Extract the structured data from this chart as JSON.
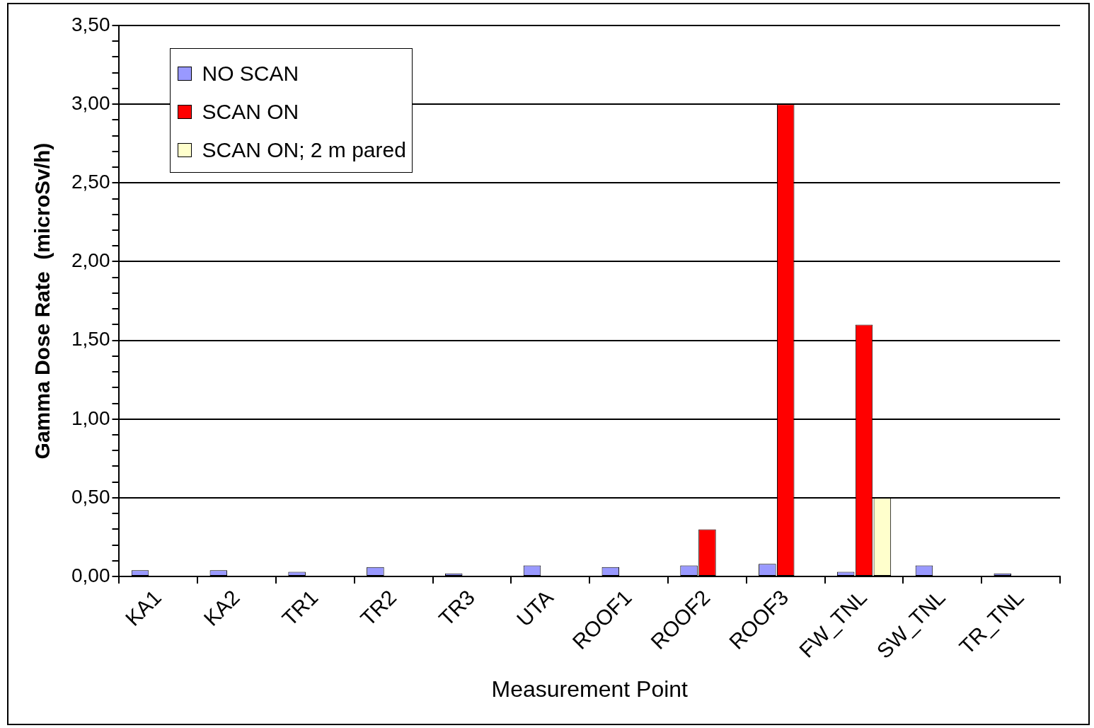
{
  "chart_data": {
    "type": "bar",
    "xlabel": "Measurement Point",
    "ylabel": "Gamma Dose Rate  (microSv/h)",
    "categories": [
      "KA1",
      "KA2",
      "TR1",
      "TR2",
      "TR3",
      "UTA",
      "ROOF1",
      "ROOF2",
      "ROOF3",
      "FW_TNL",
      "SW_TNL",
      "TR_TNL"
    ],
    "series": [
      {
        "name": "NO SCAN",
        "color": "#9999ff",
        "values": [
          0.04,
          0.04,
          0.03,
          0.06,
          0.02,
          0.07,
          0.06,
          0.07,
          0.08,
          0.03,
          0.07,
          0.02
        ]
      },
      {
        "name": "SCAN ON",
        "color": "#ff0000",
        "values": [
          null,
          null,
          null,
          null,
          null,
          null,
          null,
          0.3,
          3.0,
          1.6,
          null,
          null
        ]
      },
      {
        "name": "SCAN ON; 2 m pared",
        "color": "#ffffcc",
        "values": [
          null,
          null,
          null,
          null,
          null,
          null,
          null,
          null,
          null,
          0.5,
          null,
          null
        ]
      }
    ],
    "ylim": [
      0,
      3.5
    ],
    "yticks": [
      {
        "value": 0,
        "label": "0,00"
      },
      {
        "value": 0.1,
        "label": null
      },
      {
        "value": 0.2,
        "label": null
      },
      {
        "value": 0.3,
        "label": null
      },
      {
        "value": 0.4,
        "label": null
      },
      {
        "value": 0.5,
        "label": "0,50"
      },
      {
        "value": 0.6,
        "label": null
      },
      {
        "value": 0.7,
        "label": null
      },
      {
        "value": 0.8,
        "label": null
      },
      {
        "value": 0.9,
        "label": null
      },
      {
        "value": 1.0,
        "label": "1,00"
      },
      {
        "value": 1.1,
        "label": null
      },
      {
        "value": 1.2,
        "label": null
      },
      {
        "value": 1.3,
        "label": null
      },
      {
        "value": 1.4,
        "label": null
      },
      {
        "value": 1.5,
        "label": "1,50"
      },
      {
        "value": 1.6,
        "label": null
      },
      {
        "value": 1.7,
        "label": null
      },
      {
        "value": 1.8,
        "label": null
      },
      {
        "value": 1.9,
        "label": null
      },
      {
        "value": 2.0,
        "label": "2,00"
      },
      {
        "value": 2.1,
        "label": null
      },
      {
        "value": 2.2,
        "label": null
      },
      {
        "value": 2.3,
        "label": null
      },
      {
        "value": 2.4,
        "label": null
      },
      {
        "value": 2.5,
        "label": "2,50"
      },
      {
        "value": 2.6,
        "label": null
      },
      {
        "value": 2.7,
        "label": null
      },
      {
        "value": 2.8,
        "label": null
      },
      {
        "value": 2.9,
        "label": null
      },
      {
        "value": 3.0,
        "label": "3,00"
      },
      {
        "value": 3.1,
        "label": null
      },
      {
        "value": 3.2,
        "label": null
      },
      {
        "value": 3.3,
        "label": null
      },
      {
        "value": 3.4,
        "label": null
      },
      {
        "value": 3.5,
        "label": "3,50"
      }
    ],
    "grid": "y",
    "legend": "top left"
  }
}
